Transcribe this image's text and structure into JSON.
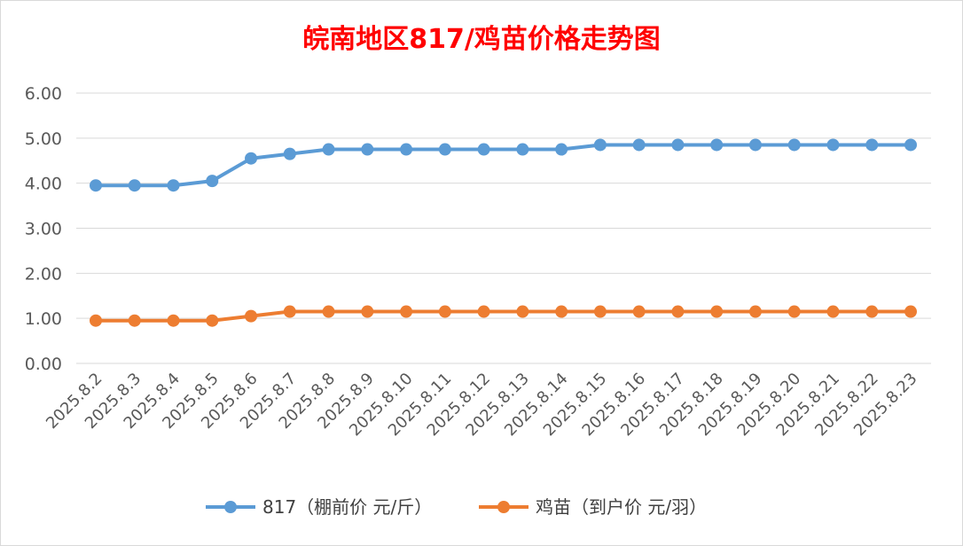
{
  "chart_data": {
    "type": "line",
    "title": "皖南地区817/鸡苗价格走势图",
    "categories": [
      "2025.8.2",
      "2025.8.3",
      "2025.8.4",
      "2025.8.5",
      "2025.8.6",
      "2025.8.7",
      "2025.8.8",
      "2025.8.9",
      "2025.8.10",
      "2025.8.11",
      "2025.8.12",
      "2025.8.13",
      "2025.8.14",
      "2025.8.15",
      "2025.8.16",
      "2025.8.17",
      "2025.8.18",
      "2025.8.19",
      "2025.8.20",
      "2025.8.21",
      "2025.8.22",
      "2025.8.23"
    ],
    "ylim": [
      0,
      6
    ],
    "yticks": [
      "0.00",
      "1.00",
      "2.00",
      "3.00",
      "4.00",
      "5.00",
      "6.00"
    ],
    "grid": true,
    "legend": "bottom",
    "series": [
      {
        "name": "817（棚前价 元/斤）",
        "color": "#5B9BD5",
        "values": [
          3.95,
          3.95,
          3.95,
          4.05,
          4.55,
          4.65,
          4.75,
          4.75,
          4.75,
          4.75,
          4.75,
          4.75,
          4.75,
          4.85,
          4.85,
          4.85,
          4.85,
          4.85,
          4.85,
          4.85,
          4.85,
          4.85
        ]
      },
      {
        "name": "鸡苗（到户价 元/羽）",
        "color": "#ED7D31",
        "values": [
          0.95,
          0.95,
          0.95,
          0.95,
          1.05,
          1.15,
          1.15,
          1.15,
          1.15,
          1.15,
          1.15,
          1.15,
          1.15,
          1.15,
          1.15,
          1.15,
          1.15,
          1.15,
          1.15,
          1.15,
          1.15,
          1.15
        ]
      }
    ],
    "title_color": "#FF0000"
  }
}
